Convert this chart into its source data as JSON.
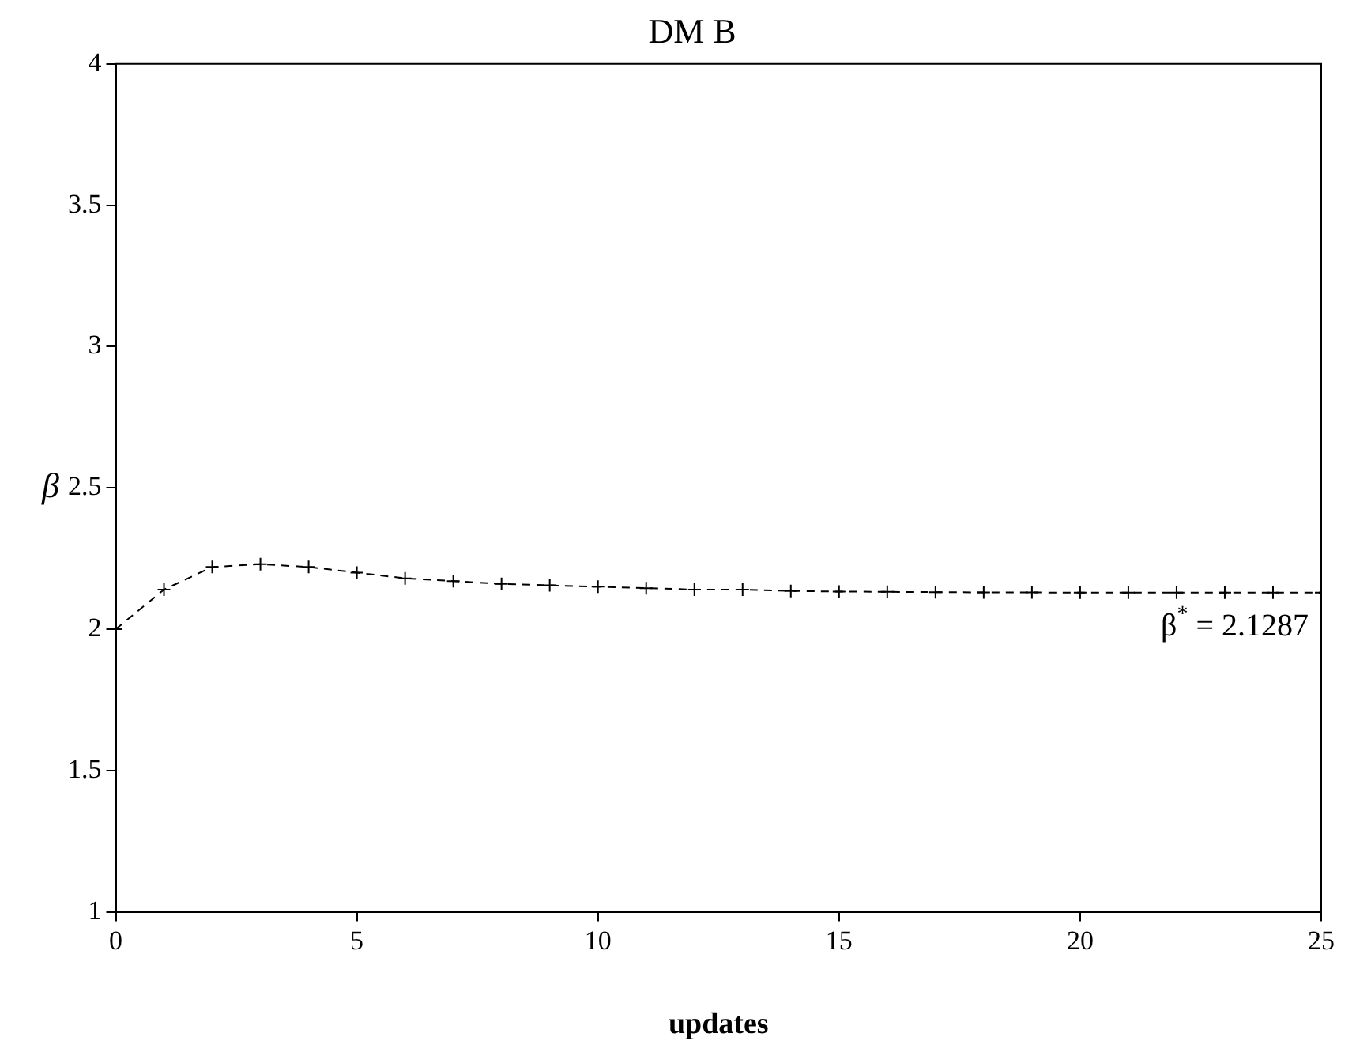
{
  "chart_data": {
    "type": "line",
    "title": "DM B",
    "xlabel": "updates",
    "ylabel": "β",
    "x": [
      0,
      1,
      2,
      3,
      4,
      5,
      6,
      7,
      8,
      9,
      10,
      11,
      12,
      13,
      14,
      15,
      16,
      17,
      18,
      19,
      20,
      21,
      22,
      23,
      24,
      25
    ],
    "values": [
      2.0,
      2.14,
      2.22,
      2.23,
      2.22,
      2.2,
      2.18,
      2.17,
      2.16,
      2.155,
      2.15,
      2.145,
      2.14,
      2.14,
      2.135,
      2.133,
      2.132,
      2.131,
      2.13,
      2.13,
      2.129,
      2.129,
      2.129,
      2.129,
      2.129,
      2.129
    ],
    "color": "#000000",
    "marker": "cross",
    "line_style": "dashed",
    "grid": false,
    "legend": false,
    "xlim": [
      0,
      25
    ],
    "xticks": [
      0,
      5,
      10,
      15,
      20,
      25
    ],
    "ylim": [
      1,
      4
    ],
    "yticks": [
      1,
      1.5,
      2,
      2.5,
      3,
      3.5,
      4
    ],
    "annotations": [
      {
        "text": "β$^{*}$ = 2.1287",
        "x": 25,
        "y": 2.1287
      }
    ]
  }
}
